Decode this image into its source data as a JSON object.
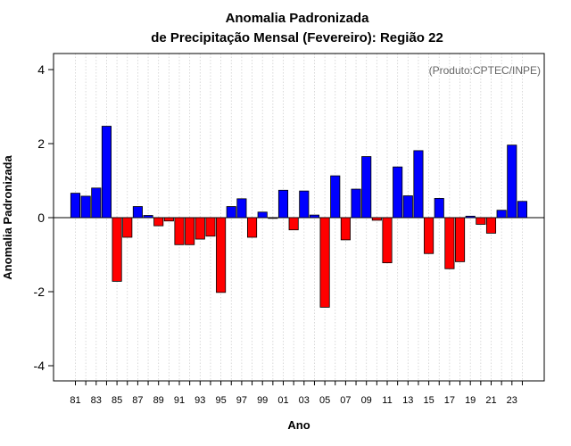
{
  "chart_data": {
    "type": "bar",
    "title_line1": "Anomalia Padronizada",
    "title_line2": "de Precipitação Mensal (Fevereiro): Região 22",
    "credit": "(Produto:CPTEC/INPE)",
    "xlabel": "Ano",
    "ylabel": "Anomalia Padronizada",
    "ylim": [
      -4.5,
      4.5
    ],
    "yticks": [
      -4,
      -2,
      0,
      2,
      4
    ],
    "grid": true,
    "positive_color": "#0000ff",
    "negative_color": "#ff0000",
    "categories": [
      "1981",
      "1982",
      "1983",
      "1984",
      "1985",
      "1986",
      "1987",
      "1988",
      "1989",
      "1990",
      "1991",
      "1992",
      "1993",
      "1994",
      "1995",
      "1996",
      "1997",
      "1998",
      "1999",
      "2000",
      "2001",
      "2002",
      "2003",
      "2004",
      "2005",
      "2006",
      "2007",
      "2008",
      "2009",
      "2010",
      "2011",
      "2012",
      "2013",
      "2014",
      "2015",
      "2016",
      "2017",
      "2018",
      "2019",
      "2020",
      "2021",
      "2022",
      "2023",
      "2024"
    ],
    "tick_labels": [
      "81",
      "",
      "83",
      "",
      "85",
      "",
      "87",
      "",
      "89",
      "",
      "91",
      "",
      "93",
      "",
      "95",
      "",
      "97",
      "",
      "99",
      "",
      "01",
      "",
      "03",
      "",
      "05",
      "",
      "07",
      "",
      "09",
      "",
      "11",
      "",
      "13",
      "",
      "15",
      "",
      "17",
      "",
      "19",
      "",
      "21",
      "",
      "23",
      ""
    ],
    "values": [
      0.66,
      0.58,
      0.8,
      2.47,
      -1.72,
      -0.53,
      0.3,
      0.06,
      -0.22,
      -0.09,
      -0.73,
      -0.73,
      -0.58,
      -0.5,
      -2.02,
      0.3,
      0.51,
      -0.53,
      0.15,
      -0.02,
      0.74,
      -0.33,
      0.72,
      0.07,
      -2.42,
      1.13,
      -0.6,
      0.77,
      1.65,
      -0.07,
      -1.22,
      1.37,
      0.59,
      1.81,
      -0.97,
      0.52,
      -1.38,
      -1.19,
      0.04,
      -0.18,
      -0.42,
      0.2,
      1.96,
      0.44
    ]
  }
}
